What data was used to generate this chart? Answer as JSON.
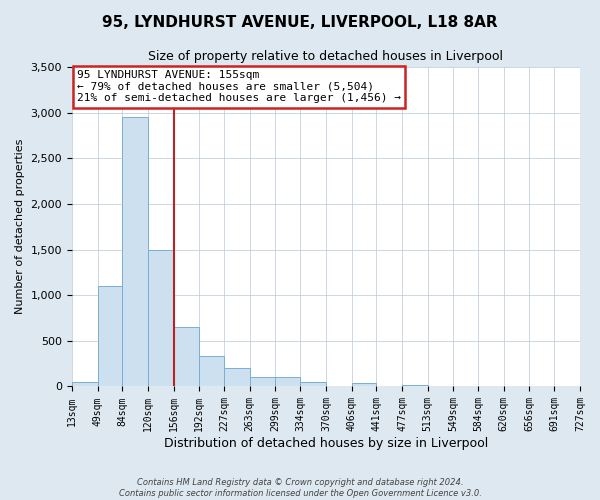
{
  "title": "95, LYNDHURST AVENUE, LIVERPOOL, L18 8AR",
  "subtitle": "Size of property relative to detached houses in Liverpool",
  "xlabel": "Distribution of detached houses by size in Liverpool",
  "ylabel": "Number of detached properties",
  "bar_edges": [
    13,
    49,
    84,
    120,
    156,
    192,
    227,
    263,
    299,
    334,
    370,
    406,
    441,
    477,
    513,
    549,
    584,
    620,
    656,
    691,
    727
  ],
  "bar_heights": [
    50,
    1100,
    2950,
    1500,
    650,
    330,
    200,
    100,
    100,
    50,
    0,
    35,
    0,
    20,
    0,
    0,
    0,
    0,
    0,
    0
  ],
  "bar_color": "#cce0f0",
  "bar_edge_color": "#7aaed4",
  "vline_x": 156,
  "vline_color": "#bb2222",
  "annotation_lines": [
    "95 LYNDHURST AVENUE: 155sqm",
    "← 79% of detached houses are smaller (5,504)",
    "21% of semi-detached houses are larger (1,456) →"
  ],
  "annotation_box_color": "#cc2222",
  "annotation_box_bg": "#ffffff",
  "ylim": [
    0,
    3500
  ],
  "yticks": [
    0,
    500,
    1000,
    1500,
    2000,
    2500,
    3000,
    3500
  ],
  "footer_line1": "Contains HM Land Registry data © Crown copyright and database right 2024.",
  "footer_line2": "Contains public sector information licensed under the Open Government Licence v3.0.",
  "background_color": "#dde8f0",
  "plot_background": "#ffffff",
  "grid_color": "#b8c8d8",
  "title_fontsize": 11,
  "subtitle_fontsize": 9,
  "ylabel_fontsize": 8,
  "xlabel_fontsize": 9,
  "ytick_fontsize": 8,
  "xtick_fontsize": 7,
  "annot_fontsize": 8
}
